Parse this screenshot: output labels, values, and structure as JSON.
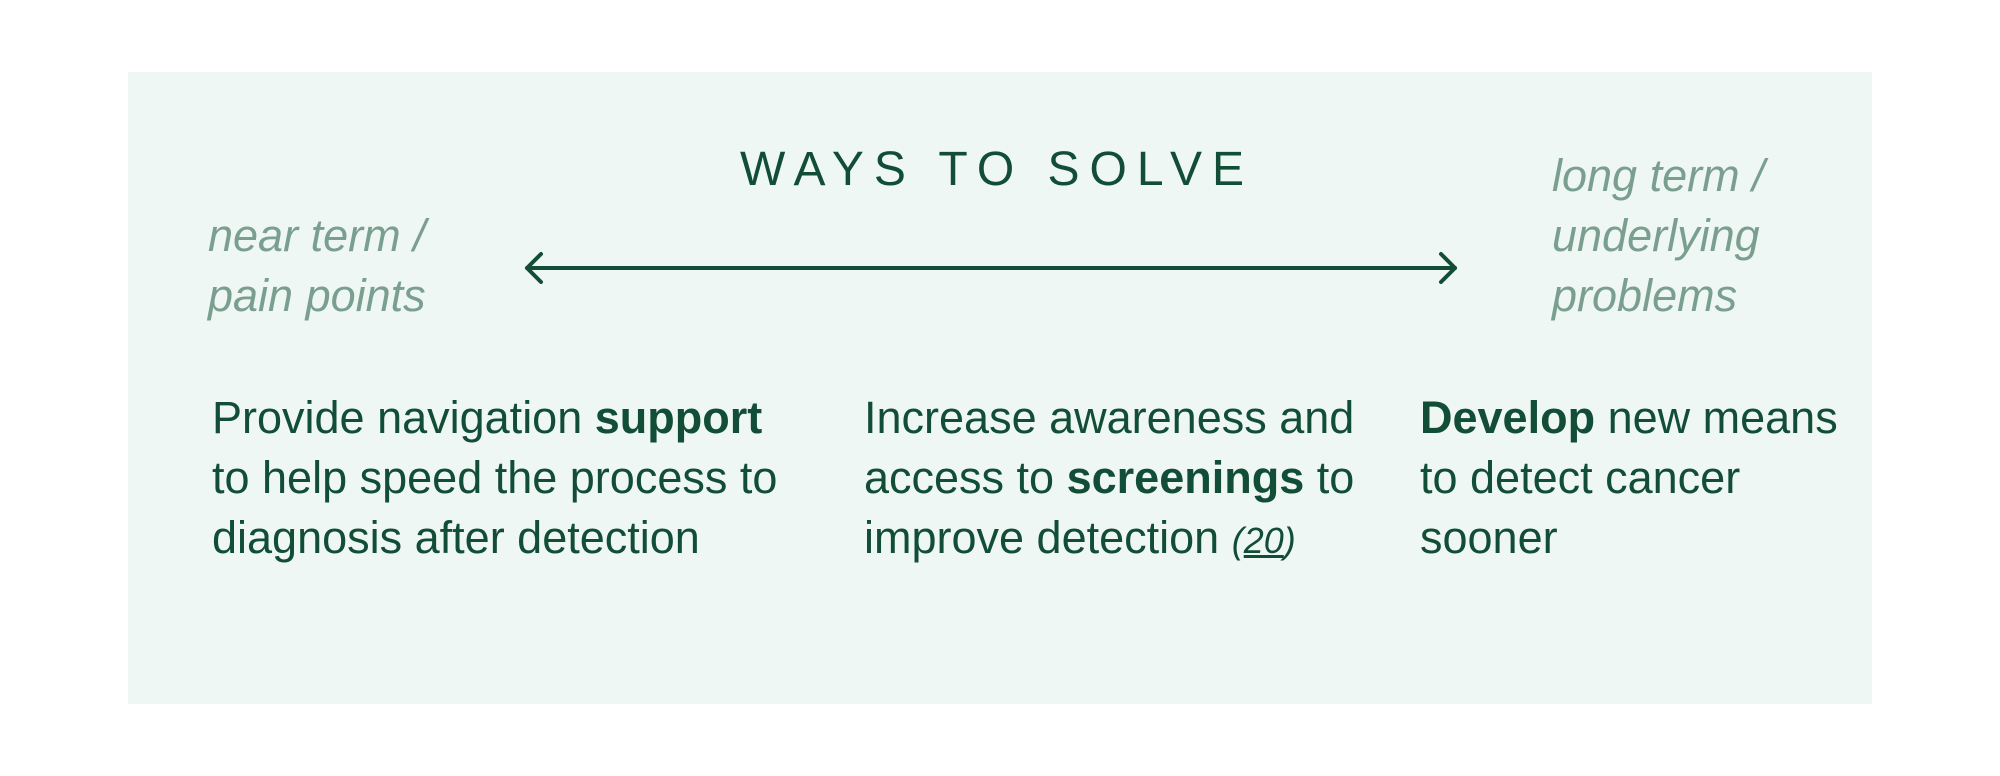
{
  "heading": "WAYS TO SOLVE",
  "spectrum": {
    "left_label_line1": "near term /",
    "left_label_line2": "pain points",
    "right_label_line1": "long term /",
    "right_label_line2": "underlying",
    "right_label_line3": "problems"
  },
  "solutions": [
    {
      "pre": "Provide navigation",
      "bold": "support",
      "post": "to help speed the process to diagnosis after detection"
    },
    {
      "pre": "Increase awareness and access to",
      "bold": "screenings",
      "post": "to improve detection",
      "citation": "20"
    },
    {
      "pre": "",
      "bold": "Develop",
      "post": "new means to detect cancer sooner"
    }
  ],
  "colors": {
    "panel_bg": "#eef7f3",
    "primary_text": "#124d38",
    "muted_text": "#7a9f90"
  },
  "icons": {
    "spectrum_arrow": "double-headed-arrow-icon"
  }
}
